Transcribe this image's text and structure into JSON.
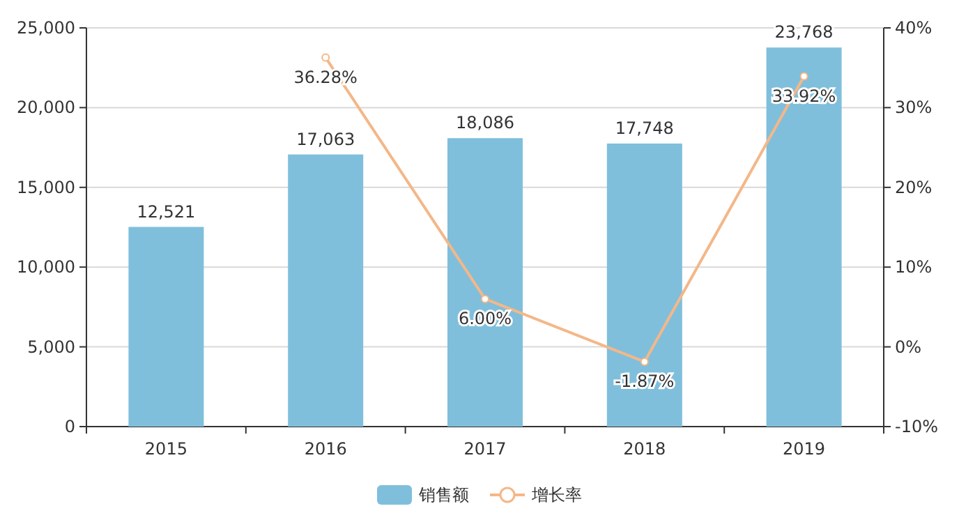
{
  "chart_data": {
    "type": "bar",
    "categories": [
      "2015",
      "2016",
      "2017",
      "2018",
      "2019"
    ],
    "series": [
      {
        "name": "销售额",
        "color": "#7fbfdc",
        "values": [
          12521,
          17063,
          18086,
          17748,
          23768
        ],
        "value_labels": [
          "12,521",
          "17,063",
          "18,086",
          "17,748",
          "23,768"
        ]
      },
      {
        "name": "增长率",
        "type": "line",
        "axis": "y2",
        "color": "#f4b788",
        "marker": "circle",
        "values": [
          null,
          36.28,
          6.0,
          -1.87,
          33.92
        ],
        "value_labels": [
          null,
          "36.28%",
          "6.00%",
          "-1.87%",
          "33.92%"
        ]
      }
    ],
    "ylim": [
      0,
      25000
    ],
    "yticks": [
      {
        "value": 0,
        "label": "0"
      },
      {
        "value": 5000,
        "label": "5,000"
      },
      {
        "value": 10000,
        "label": "10,000"
      },
      {
        "value": 15000,
        "label": "15,000"
      },
      {
        "value": 20000,
        "label": "20,000"
      },
      {
        "value": 25000,
        "label": "25,000"
      }
    ],
    "y2lim": [
      -10,
      40
    ],
    "y2ticks": [
      {
        "value": -10,
        "label": "-10%"
      },
      {
        "value": 0,
        "label": "0%"
      },
      {
        "value": 10,
        "label": "10%"
      },
      {
        "value": 20,
        "label": "20%"
      },
      {
        "value": 30,
        "label": "30%"
      },
      {
        "value": 40,
        "label": "40%"
      }
    ],
    "grid": "y",
    "legend": "bottom"
  }
}
